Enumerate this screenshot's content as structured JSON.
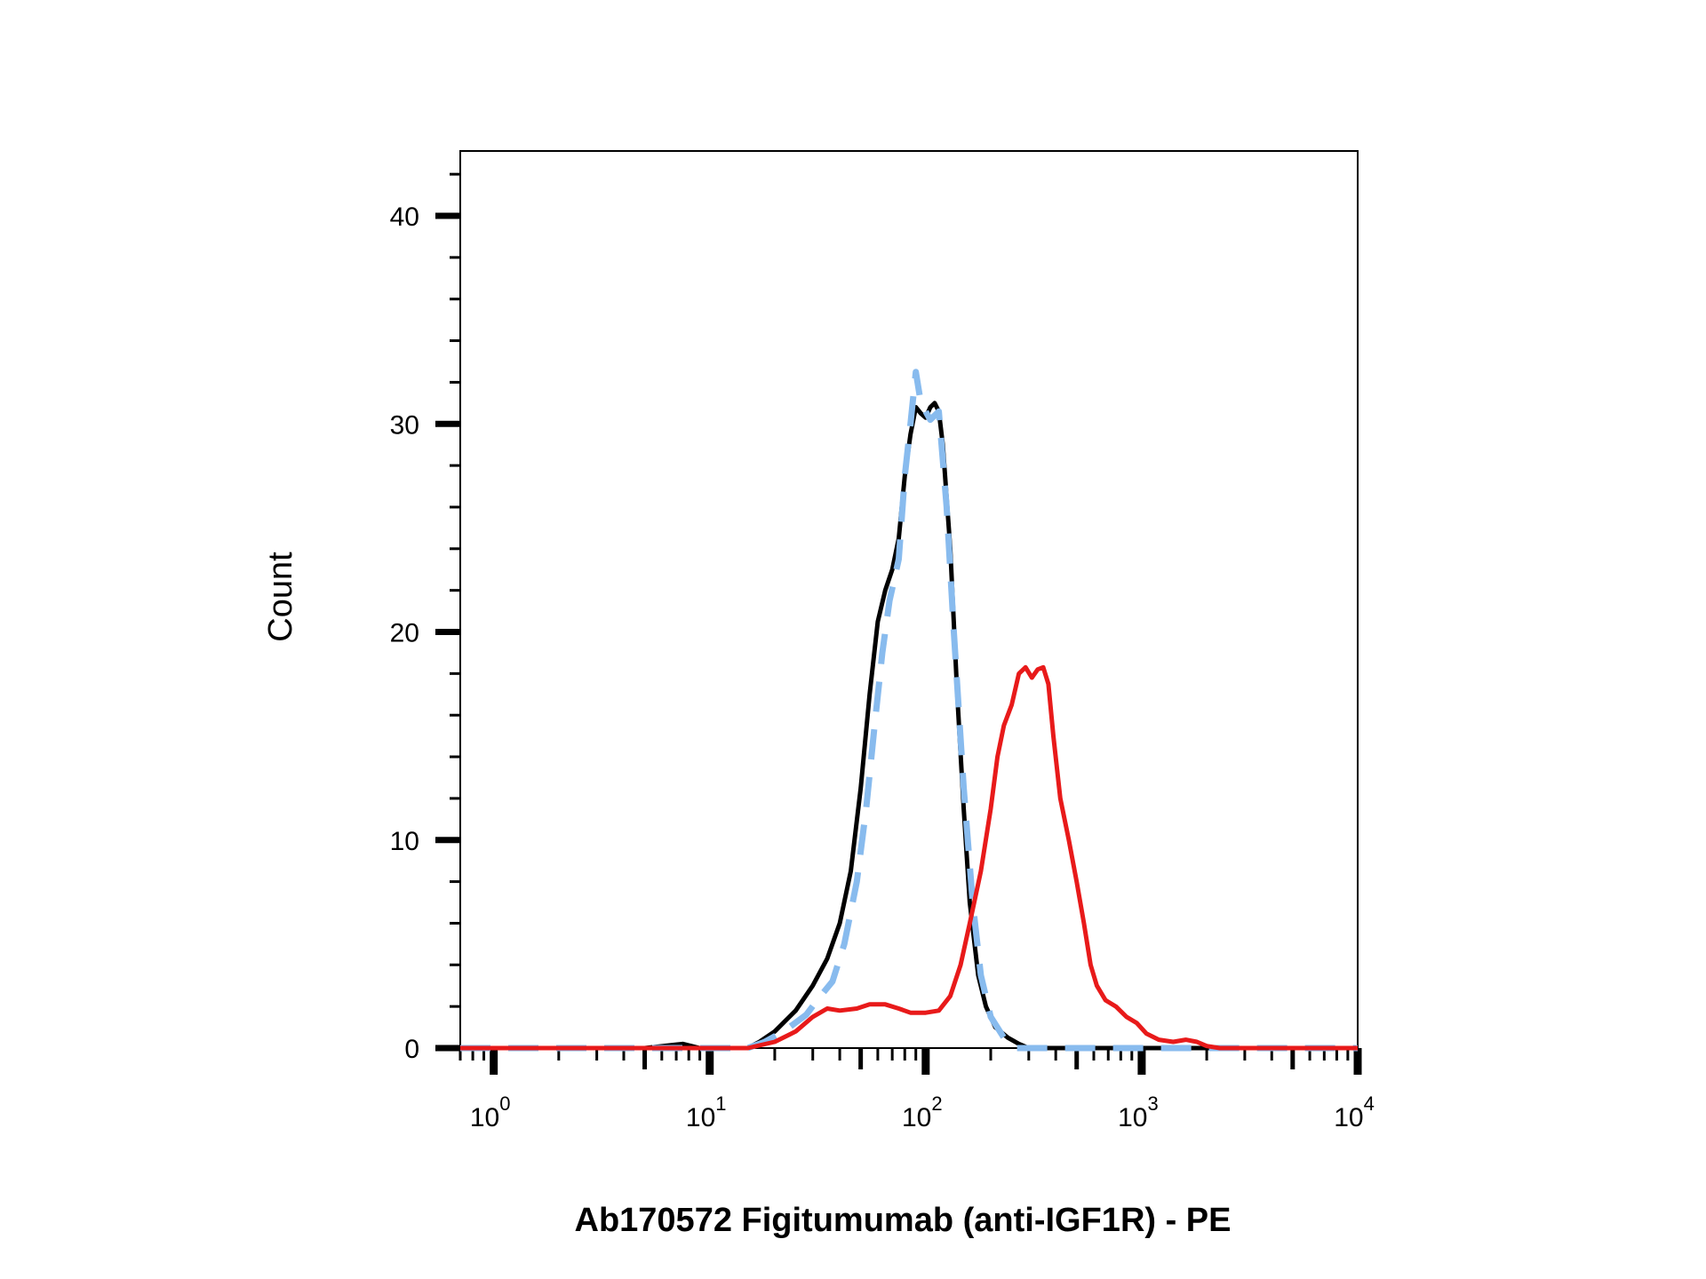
{
  "chart_data": {
    "type": "line",
    "title": "",
    "xlabel": "Ab170572 Figitumumab (anti-IGF1R) - PE",
    "ylabel": "Count",
    "xscale": "log",
    "xlim": [
      0.7,
      10000
    ],
    "ylim": [
      0,
      43
    ],
    "x_ticks": [
      {
        "value": 1,
        "base": "10",
        "exp": "0"
      },
      {
        "value": 10,
        "base": "10",
        "exp": "1"
      },
      {
        "value": 100,
        "base": "10",
        "exp": "2"
      },
      {
        "value": 1000,
        "base": "10",
        "exp": "3"
      },
      {
        "value": 10000,
        "base": "10",
        "exp": "4"
      }
    ],
    "y_ticks": [
      0,
      10,
      20,
      30,
      40
    ],
    "grid": false,
    "legend": "none",
    "series": [
      {
        "color": "#000000",
        "style": "solid",
        "points": [
          [
            0.7,
            0
          ],
          [
            5,
            0
          ],
          [
            7.5,
            0.2
          ],
          [
            9,
            0
          ],
          [
            15,
            0
          ],
          [
            17,
            0.3
          ],
          [
            20,
            0.8
          ],
          [
            25,
            1.8
          ],
          [
            30,
            3.0
          ],
          [
            35,
            4.3
          ],
          [
            40,
            6.0
          ],
          [
            45,
            8.5
          ],
          [
            50,
            12.5
          ],
          [
            55,
            17.0
          ],
          [
            60,
            20.5
          ],
          [
            65,
            22.0
          ],
          [
            70,
            23.0
          ],
          [
            75,
            24.5
          ],
          [
            80,
            27.5
          ],
          [
            85,
            29.5
          ],
          [
            90,
            30.8
          ],
          [
            95,
            30.5
          ],
          [
            100,
            30.3
          ],
          [
            105,
            30.8
          ],
          [
            110,
            31.0
          ],
          [
            115,
            30.6
          ],
          [
            120,
            29.0
          ],
          [
            130,
            24.0
          ],
          [
            140,
            17.0
          ],
          [
            150,
            11.5
          ],
          [
            160,
            7.0
          ],
          [
            175,
            3.5
          ],
          [
            190,
            2.0
          ],
          [
            210,
            1.0
          ],
          [
            240,
            0.5
          ],
          [
            270,
            0.2
          ],
          [
            300,
            0
          ],
          [
            10000,
            0
          ]
        ]
      },
      {
        "color": "#88bbee",
        "style": "dashed",
        "points": [
          [
            0.7,
            0
          ],
          [
            15,
            0
          ],
          [
            18,
            0.3
          ],
          [
            22,
            0.8
          ],
          [
            28,
            1.6
          ],
          [
            32,
            2.4
          ],
          [
            37,
            3.2
          ],
          [
            42,
            5.0
          ],
          [
            48,
            8.0
          ],
          [
            53,
            11.5
          ],
          [
            58,
            15.5
          ],
          [
            63,
            19.0
          ],
          [
            68,
            21.5
          ],
          [
            75,
            23.5
          ],
          [
            80,
            27.5
          ],
          [
            85,
            30.0
          ],
          [
            90,
            32.5
          ],
          [
            95,
            31.0
          ],
          [
            105,
            30.2
          ],
          [
            115,
            30.6
          ],
          [
            125,
            26.0
          ],
          [
            135,
            20.0
          ],
          [
            150,
            12.5
          ],
          [
            165,
            7.0
          ],
          [
            180,
            3.5
          ],
          [
            200,
            1.5
          ],
          [
            230,
            0.5
          ],
          [
            260,
            0
          ],
          [
            10000,
            0
          ]
        ]
      },
      {
        "color": "#e81a1a",
        "style": "solid",
        "points": [
          [
            0.7,
            0
          ],
          [
            15,
            0
          ],
          [
            20,
            0.3
          ],
          [
            25,
            0.8
          ],
          [
            30,
            1.5
          ],
          [
            35,
            1.9
          ],
          [
            40,
            1.8
          ],
          [
            48,
            1.9
          ],
          [
            55,
            2.1
          ],
          [
            65,
            2.1
          ],
          [
            75,
            1.9
          ],
          [
            85,
            1.7
          ],
          [
            100,
            1.7
          ],
          [
            115,
            1.8
          ],
          [
            130,
            2.5
          ],
          [
            145,
            4.0
          ],
          [
            160,
            6.0
          ],
          [
            180,
            8.5
          ],
          [
            200,
            11.5
          ],
          [
            215,
            14.0
          ],
          [
            230,
            15.5
          ],
          [
            250,
            16.5
          ],
          [
            270,
            18.0
          ],
          [
            290,
            18.3
          ],
          [
            310,
            17.8
          ],
          [
            330,
            18.2
          ],
          [
            350,
            18.3
          ],
          [
            370,
            17.5
          ],
          [
            390,
            15.0
          ],
          [
            420,
            12.0
          ],
          [
            460,
            10.0
          ],
          [
            500,
            8.0
          ],
          [
            540,
            6.0
          ],
          [
            580,
            4.0
          ],
          [
            620,
            3.0
          ],
          [
            680,
            2.3
          ],
          [
            760,
            2.0
          ],
          [
            850,
            1.5
          ],
          [
            950,
            1.2
          ],
          [
            1050,
            0.7
          ],
          [
            1200,
            0.4
          ],
          [
            1400,
            0.3
          ],
          [
            1600,
            0.4
          ],
          [
            1800,
            0.3
          ],
          [
            2000,
            0.1
          ],
          [
            2300,
            0
          ],
          [
            10000,
            0
          ]
        ]
      }
    ]
  }
}
